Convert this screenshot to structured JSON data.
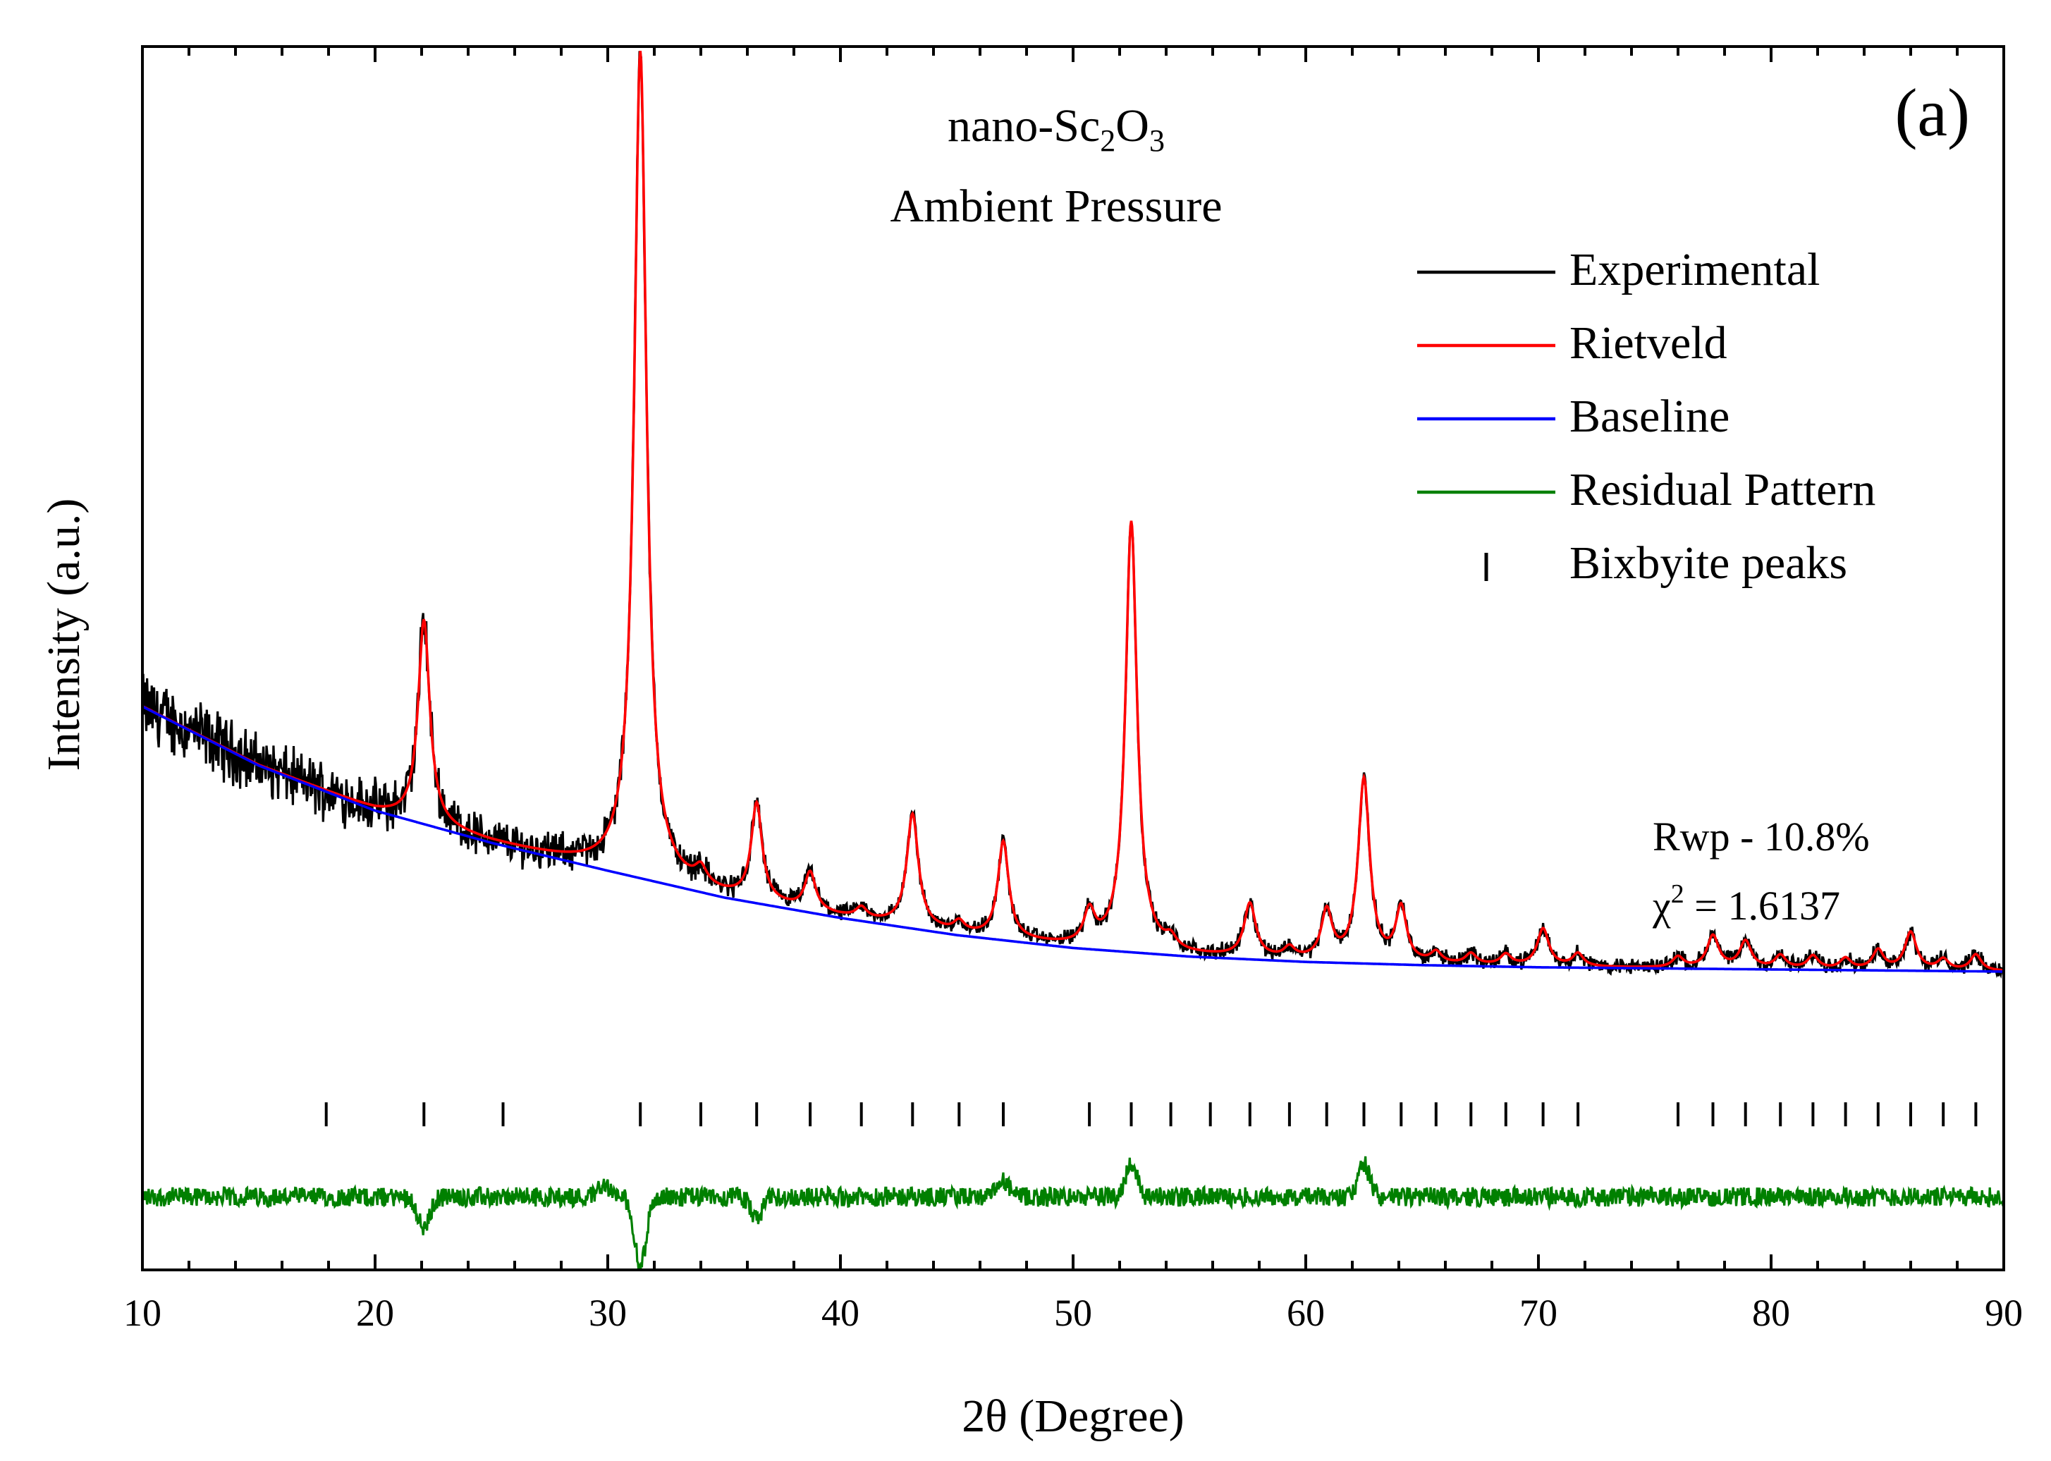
{
  "chart_data": {
    "type": "line",
    "panel_label": "(a)",
    "title": {
      "line1_prefix": "nano-Sc",
      "line1_sub1": "2",
      "line1_mid": "O",
      "line1_sub2": "3",
      "line2": "Ambient Pressure"
    },
    "xlabel": "2θ (Degree)",
    "ylabel": "Intensity (a.u.)",
    "xlim": [
      10,
      90
    ],
    "ylim": [
      -0.14,
      1.0
    ],
    "x_ticks": [
      10,
      20,
      30,
      40,
      50,
      60,
      70,
      80,
      90
    ],
    "x_tick_labels": [
      "10",
      "20",
      "30",
      "40",
      "50",
      "60",
      "70",
      "80",
      "90"
    ],
    "y_tick_labels_shown": false,
    "legend": {
      "placement": "top-right",
      "entries": [
        {
          "label": "Experimental",
          "color": "#000000",
          "marker": "line"
        },
        {
          "label": "Rietveld",
          "color": "#ff0000",
          "marker": "line"
        },
        {
          "label": "Baseline",
          "color": "#0000ff",
          "marker": "line"
        },
        {
          "label": "Residual Pattern",
          "color": "#008000",
          "marker": "line"
        },
        {
          "label": "Bixbyite peaks",
          "color": "#000000",
          "marker": "tick"
        }
      ]
    },
    "annotations": {
      "rwp": "Rwp - 10.8%",
      "chi_symbol": "χ",
      "chi_sup": "2",
      "chi_value": " = 1.6137"
    },
    "baseline": {
      "name": "Baseline",
      "color": "#0000ff",
      "x": [
        10,
        15,
        20,
        25,
        30,
        35,
        40,
        45,
        50,
        55,
        60,
        65,
        70,
        75,
        80,
        85,
        90
      ],
      "y": [
        0.385,
        0.33,
        0.288,
        0.258,
        0.232,
        0.207,
        0.188,
        0.172,
        0.16,
        0.152,
        0.147,
        0.144,
        0.142,
        0.141,
        0.14,
        0.139,
        0.138
      ]
    },
    "peaks": [
      {
        "pos": 22.1,
        "height": 0.19,
        "width": 0.3
      },
      {
        "pos": 31.4,
        "height": 0.77,
        "width": 0.32
      },
      {
        "pos": 34.0,
        "height": 0.015,
        "width": 0.3
      },
      {
        "pos": 36.4,
        "height": 0.09,
        "width": 0.28
      },
      {
        "pos": 38.7,
        "height": 0.035,
        "width": 0.28
      },
      {
        "pos": 40.9,
        "height": 0.01,
        "width": 0.28
      },
      {
        "pos": 43.1,
        "height": 0.105,
        "width": 0.3
      },
      {
        "pos": 45.1,
        "height": 0.01,
        "width": 0.28
      },
      {
        "pos": 47.0,
        "height": 0.09,
        "width": 0.28
      },
      {
        "pos": 50.7,
        "height": 0.03,
        "width": 0.28
      },
      {
        "pos": 52.5,
        "height": 0.4,
        "width": 0.3
      },
      {
        "pos": 54.2,
        "height": 0.01,
        "width": 0.28
      },
      {
        "pos": 57.6,
        "height": 0.05,
        "width": 0.3
      },
      {
        "pos": 59.3,
        "height": 0.01,
        "width": 0.28
      },
      {
        "pos": 60.9,
        "height": 0.045,
        "width": 0.28
      },
      {
        "pos": 62.5,
        "height": 0.17,
        "width": 0.3
      },
      {
        "pos": 64.1,
        "height": 0.05,
        "width": 0.28
      },
      {
        "pos": 65.6,
        "height": 0.01,
        "width": 0.28
      },
      {
        "pos": 67.1,
        "height": 0.01,
        "width": 0.28
      },
      {
        "pos": 68.6,
        "height": 0.01,
        "width": 0.28
      },
      {
        "pos": 70.2,
        "height": 0.035,
        "width": 0.3
      },
      {
        "pos": 71.7,
        "height": 0.012,
        "width": 0.28
      },
      {
        "pos": 76.0,
        "height": 0.01,
        "width": 0.28
      },
      {
        "pos": 77.5,
        "height": 0.03,
        "width": 0.3
      },
      {
        "pos": 78.9,
        "height": 0.025,
        "width": 0.3
      },
      {
        "pos": 80.4,
        "height": 0.012,
        "width": 0.28
      },
      {
        "pos": 81.8,
        "height": 0.012,
        "width": 0.28
      },
      {
        "pos": 83.2,
        "height": 0.01,
        "width": 0.28
      },
      {
        "pos": 84.6,
        "height": 0.018,
        "width": 0.28
      },
      {
        "pos": 86.0,
        "height": 0.035,
        "width": 0.3
      },
      {
        "pos": 87.4,
        "height": 0.01,
        "width": 0.28
      },
      {
        "pos": 88.8,
        "height": 0.015,
        "width": 0.28
      }
    ],
    "bixbyite_peak_positions": [
      17.9,
      22.1,
      25.5,
      31.4,
      34.0,
      36.4,
      38.7,
      40.9,
      43.1,
      45.1,
      47.0,
      50.7,
      52.5,
      54.2,
      55.9,
      57.6,
      59.3,
      60.9,
      62.5,
      64.1,
      65.6,
      67.1,
      68.6,
      70.2,
      71.7,
      76.0,
      77.5,
      78.9,
      80.4,
      81.8,
      83.2,
      84.6,
      86.0,
      87.4,
      88.8
    ],
    "bixbyite_tick_level": 0.005,
    "residual": {
      "name": "Residual Pattern",
      "color": "#008000",
      "offset": -0.072,
      "noise": 0.009,
      "features": [
        {
          "pos": 22.1,
          "amp": -0.03
        },
        {
          "pos": 29.8,
          "amp": 0.012
        },
        {
          "pos": 31.4,
          "amp": -0.065
        },
        {
          "pos": 36.4,
          "amp": -0.02
        },
        {
          "pos": 47.0,
          "amp": 0.015
        },
        {
          "pos": 52.5,
          "amp": 0.032
        },
        {
          "pos": 62.5,
          "amp": 0.03
        }
      ]
    },
    "series_colors": {
      "experimental": "#000000",
      "rietveld": "#ff0000",
      "baseline": "#0000ff",
      "residual": "#008000"
    }
  }
}
